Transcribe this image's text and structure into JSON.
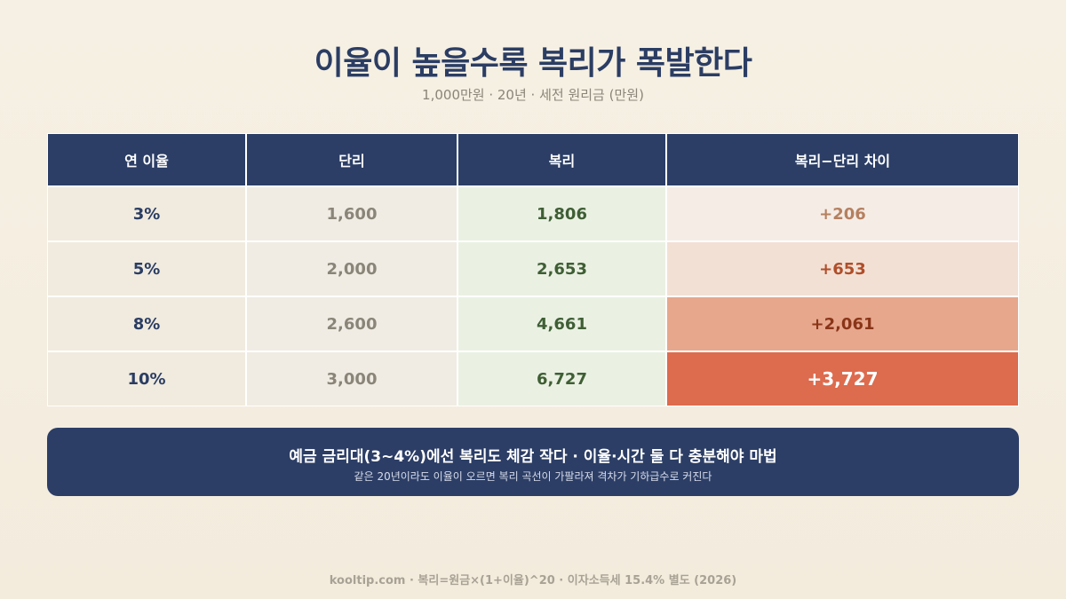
{
  "title": "이율이 높을수록 복리가 폭발한다",
  "subtitle": "1,000만원 · 20년 · 세전 원리금 (만원)",
  "chart_data": {
    "type": "table",
    "columns": [
      "연 이율",
      "단리",
      "복리",
      "복리−단리 차이"
    ],
    "rows": [
      {
        "rate": "3%",
        "simple": "1,600",
        "compound": "1,806",
        "diff": "+206",
        "diff_bg": "#f5ece6",
        "diff_color": "#b5805f"
      },
      {
        "rate": "5%",
        "simple": "2,000",
        "compound": "2,653",
        "diff": "+653",
        "diff_bg": "#f2e0d5",
        "diff_color": "#b04e2a"
      },
      {
        "rate": "8%",
        "simple": "2,600",
        "compound": "4,661",
        "diff": "+2,061",
        "diff_bg": "#e6a78d",
        "diff_color": "#8a3518"
      },
      {
        "rate": "10%",
        "simple": "3,000",
        "compound": "6,727",
        "diff": "+3,727",
        "diff_bg": "#dd6b4e",
        "diff_color": "#ffffff"
      }
    ]
  },
  "banner": {
    "main": "예금 금리대(3~4%)에선 복리도 체감 작다 · 이율·시간 둘 다 충분해야 마법",
    "sub": "같은 20년이라도 이율이 오르면 복리 곡선이 가팔라져 격차가 기하급수로 커진다"
  },
  "footer": "kooltip.com · 복리=원금×(1+이율)^20 · 이자소득세 15.4% 별도 (2026)"
}
